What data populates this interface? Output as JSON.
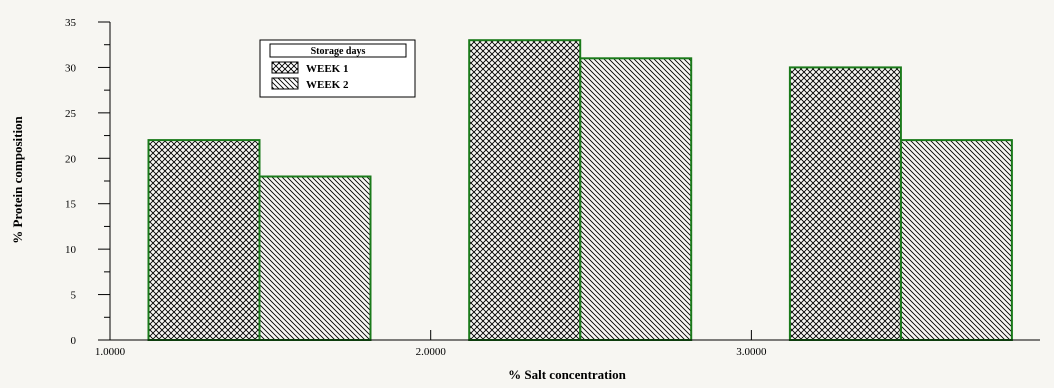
{
  "chart_data": {
    "type": "bar",
    "title": "",
    "xlabel": "% Salt concentration",
    "ylabel": "% Protein composition",
    "x_ticks": [
      "1.0000",
      "2.0000",
      "3.0000"
    ],
    "y_ticks": [
      "0",
      "5",
      "10",
      "15",
      "20",
      "25",
      "30",
      "35"
    ],
    "ylim": [
      0,
      35
    ],
    "categories": [
      "1.0000",
      "2.0000",
      "3.0000"
    ],
    "legend_title": "Storage days",
    "legend_position": "top-left",
    "series": [
      {
        "name": "WEEK 1",
        "values": [
          22,
          33,
          30
        ],
        "pattern": "crosshatch"
      },
      {
        "name": "WEEK 2",
        "values": [
          18,
          31,
          22
        ],
        "pattern": "diagonal"
      }
    ],
    "grid": false
  },
  "colors": {
    "bar_outline": "#1a7a1a",
    "background": "#f7f6f2",
    "axis": "#000000"
  }
}
